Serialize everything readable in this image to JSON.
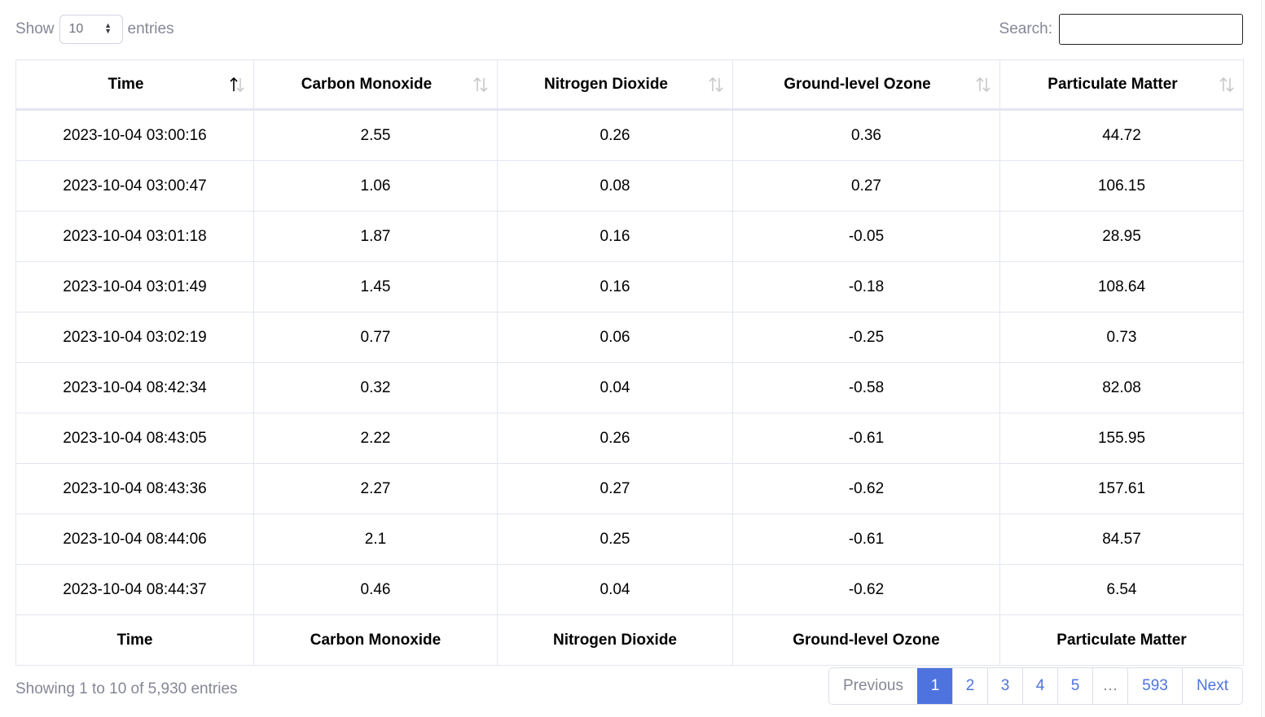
{
  "controls": {
    "show_label": "Show",
    "page_length": "10",
    "entries_label": "entries",
    "search_label": "Search:",
    "search_value": ""
  },
  "table": {
    "columns": [
      "Time",
      "Carbon Monoxide",
      "Nitrogen Dioxide",
      "Ground-level Ozone",
      "Particulate Matter"
    ],
    "sorted_column": "Time",
    "sort_direction": "asc",
    "rows": [
      [
        "2023-10-04 03:00:16",
        "2.55",
        "0.26",
        "0.36",
        "44.72"
      ],
      [
        "2023-10-04 03:00:47",
        "1.06",
        "0.08",
        "0.27",
        "106.15"
      ],
      [
        "2023-10-04 03:01:18",
        "1.87",
        "0.16",
        "-0.05",
        "28.95"
      ],
      [
        "2023-10-04 03:01:49",
        "1.45",
        "0.16",
        "-0.18",
        "108.64"
      ],
      [
        "2023-10-04 03:02:19",
        "0.77",
        "0.06",
        "-0.25",
        "0.73"
      ],
      [
        "2023-10-04 08:42:34",
        "0.32",
        "0.04",
        "-0.58",
        "82.08"
      ],
      [
        "2023-10-04 08:43:05",
        "2.22",
        "0.26",
        "-0.61",
        "155.95"
      ],
      [
        "2023-10-04 08:43:36",
        "2.27",
        "0.27",
        "-0.62",
        "157.61"
      ],
      [
        "2023-10-04 08:44:06",
        "2.1",
        "0.25",
        "-0.61",
        "84.57"
      ],
      [
        "2023-10-04 08:44:37",
        "0.46",
        "0.04",
        "-0.62",
        "6.54"
      ]
    ]
  },
  "footer": {
    "info": "Showing 1 to 10 of 5,930 entries",
    "pagination": {
      "previous": "Previous",
      "next": "Next",
      "pages": [
        "1",
        "2",
        "3",
        "4",
        "5",
        "…",
        "593"
      ],
      "active": "1"
    }
  },
  "colors": {
    "accent": "#4e73df",
    "muted_text": "#858796",
    "border": "#e3e6f0"
  }
}
